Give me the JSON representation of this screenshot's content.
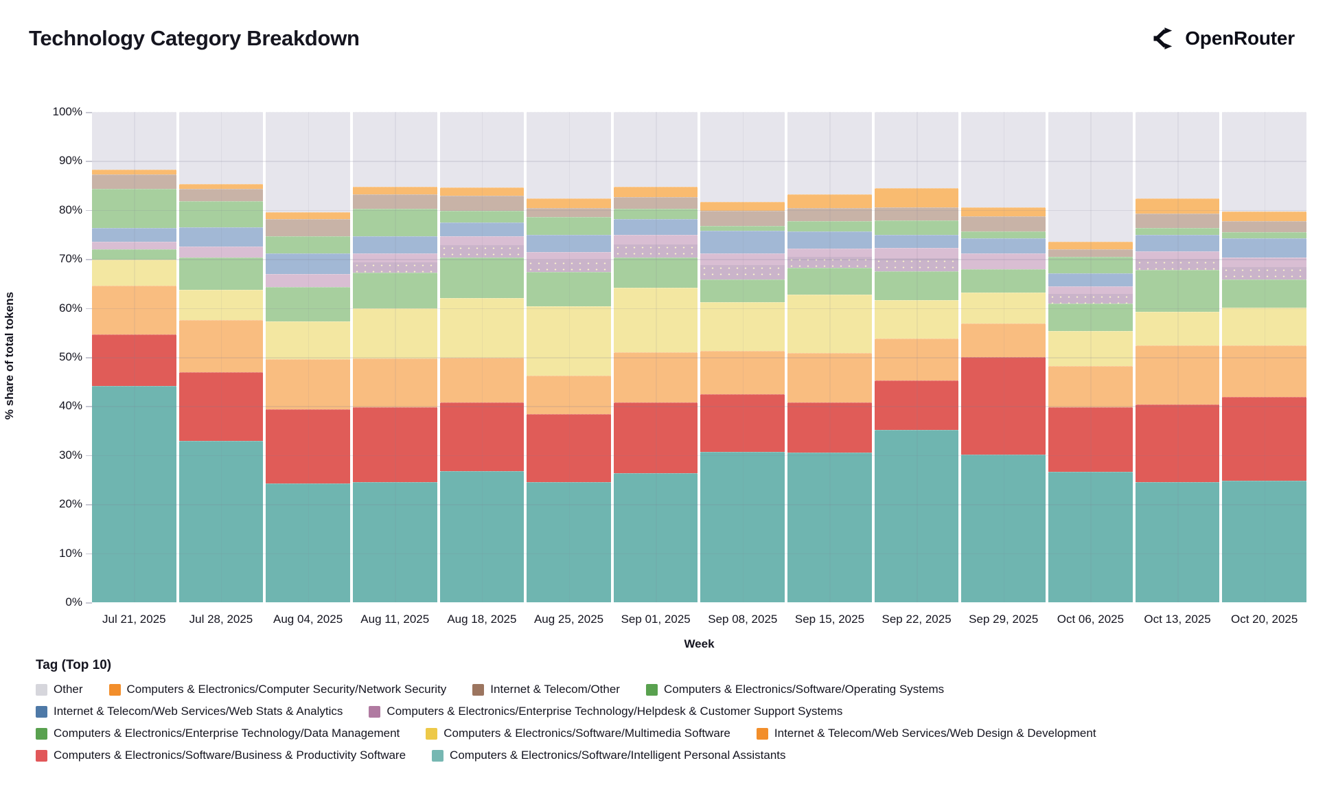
{
  "header": {
    "title": "Technology Category Breakdown",
    "logo_text": "OpenRouter"
  },
  "chart_data": {
    "type": "bar",
    "variant": "100%-stacked-column",
    "title": "Technology Category Breakdown",
    "xlabel": "Week",
    "ylabel": "% share of total tokens",
    "legend_title": "Tag (Top 10)",
    "legend_position": "bottom",
    "grid": true,
    "ylim": [
      0,
      100
    ],
    "ytick_labels": [
      "0%",
      "10%",
      "20%",
      "30%",
      "40%",
      "50%",
      "60%",
      "70%",
      "80%",
      "90%",
      "100%"
    ],
    "categories": [
      "Jul 21, 2025",
      "Jul 28, 2025",
      "Aug 04, 2025",
      "Aug 11, 2025",
      "Aug 18, 2025",
      "Aug 25, 2025",
      "Sep 01, 2025",
      "Sep 08, 2025",
      "Sep 15, 2025",
      "Sep 22, 2025",
      "Sep 29, 2025",
      "Oct 06, 2025",
      "Oct 13, 2025",
      "Oct 20, 2025"
    ],
    "series_note": "values are % share of total tokens per week; series listed in legend order (top of stack first); stacking order in chart is the reverse (Intelligent Personal Assistants at bottom).",
    "series": [
      {
        "name": "Other",
        "swatch": "#d6d6dc",
        "fill": "#e6e5ec",
        "values": [
          11.7,
          14.7,
          20.5,
          15.3,
          15.4,
          17.6,
          15.3,
          18.3,
          16.8,
          15.6,
          19.4,
          26.4,
          17.6,
          20.3
        ]
      },
      {
        "name": "Computers & Electronics/Computer Security/Network Security",
        "swatch": "#f28e2b",
        "fill": "#f9bb70",
        "values": [
          1.1,
          1.0,
          1.4,
          1.5,
          1.7,
          2.0,
          2.0,
          1.8,
          2.8,
          3.8,
          1.9,
          1.6,
          3.1,
          2.0
        ]
      },
      {
        "name": "Internet & Telecom/Other",
        "swatch": "#9c755f",
        "fill": "#c8b3a7",
        "values": [
          2.9,
          2.5,
          3.5,
          3.0,
          3.1,
          1.8,
          2.5,
          3.2,
          2.7,
          2.7,
          3.0,
          1.5,
          2.9,
          2.2
        ]
      },
      {
        "name": "Computers & Electronics/Software/Operating Systems",
        "swatch": "#59a14f",
        "fill": "#a7cf9e",
        "values": [
          7.9,
          5.3,
          3.5,
          5.6,
          2.3,
          3.6,
          2.1,
          0.9,
          2.0,
          2.9,
          1.4,
          3.4,
          1.4,
          1.3
        ]
      },
      {
        "name": "Internet & Telecom/Web Services/Web Stats & Analytics",
        "swatch": "#4e79a7",
        "fill": "#a2b8d5",
        "values": [
          2.8,
          4.0,
          4.2,
          3.5,
          2.8,
          3.5,
          3.1,
          4.7,
          3.5,
          2.7,
          3.2,
          2.7,
          3.4,
          3.9
        ]
      },
      {
        "name": "Computers & Electronics/Enterprise Technology/Helpdesk & Customer Support Systems",
        "swatch": "#b07aa1",
        "fill": "#d9bed3",
        "values": [
          1.6,
          2.2,
          2.6,
          3.9,
          4.4,
          4.1,
          4.7,
          5.2,
          4.0,
          4.8,
          3.2,
          3.4,
          3.8,
          4.5
        ]
      },
      {
        "name": "Computers & Electronics/Enterprise Technology/Data Management",
        "swatch": "#59a14f",
        "fill": "#a7cf9e",
        "values": [
          2.1,
          6.5,
          7.0,
          7.3,
          8.3,
          7.0,
          6.2,
          4.7,
          5.4,
          5.9,
          4.7,
          5.7,
          8.5,
          5.7
        ]
      },
      {
        "name": "Computers & Electronics/Software/Multimedia Software",
        "swatch": "#edc948",
        "fill": "#f3e7a1",
        "values": [
          5.3,
          6.2,
          7.7,
          10.2,
          12.1,
          14.2,
          13.1,
          10.0,
          11.9,
          7.8,
          6.4,
          7.1,
          6.9,
          7.7
        ]
      },
      {
        "name": "Internet & Telecom/Web Services/Web Design & Development",
        "swatch": "#f28e2b",
        "fill": "#f9bd80",
        "values": [
          10.0,
          10.7,
          10.2,
          9.9,
          9.1,
          7.8,
          10.3,
          8.8,
          10.1,
          8.6,
          6.8,
          8.4,
          12.1,
          10.5
        ]
      },
      {
        "name": "Computers & Electronics/Software/Business & Productivity Software",
        "swatch": "#e15759",
        "fill": "#e05c58",
        "values": [
          10.5,
          14.0,
          15.2,
          15.3,
          14.1,
          13.9,
          14.4,
          11.7,
          10.2,
          10.0,
          19.9,
          13.2,
          15.8,
          17.1
        ]
      },
      {
        "name": "Computers & Electronics/Software/Intelligent Personal Assistants",
        "swatch": "#76b7b2",
        "fill": "#6fb5b0",
        "values": [
          44.1,
          32.9,
          24.2,
          24.5,
          26.7,
          24.5,
          26.3,
          30.7,
          30.6,
          35.2,
          30.1,
          26.6,
          24.5,
          24.8
        ]
      }
    ],
    "legend_rows": [
      [
        0,
        1,
        2,
        3
      ],
      [
        4,
        5
      ],
      [
        6,
        7,
        8
      ],
      [
        9,
        10
      ]
    ]
  }
}
